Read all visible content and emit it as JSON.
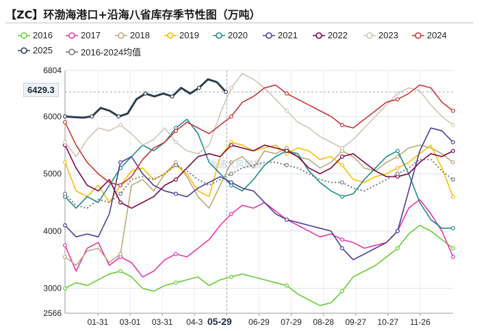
{
  "title": "【ZC】环渤海港口+沿海八省库存季节性图（万吨）",
  "watermark": "海通大风期货",
  "readout": "6429.3",
  "crosshair_date": "05-29",
  "chart_data": {
    "type": "line",
    "y_axis": {
      "min": 2566,
      "max": 6804,
      "ticks": [
        2566,
        3000,
        4000,
        5000,
        6000,
        6804
      ]
    },
    "x_axis": {
      "tick_labels": [
        "01-31",
        "03-01",
        "03-31",
        "04-3",
        "05-29",
        "06-29",
        "07-29",
        "08-28",
        "09-27",
        "10-27",
        "11-26"
      ]
    },
    "grid": true,
    "legend_position": "top",
    "series": [
      {
        "name": "2016",
        "color": "#66cc33",
        "values": [
          3000,
          3100,
          3050,
          3150,
          3250,
          3300,
          3200,
          3000,
          2950,
          3050,
          3100,
          3150,
          3200,
          3050,
          3150,
          3200,
          3250,
          3200,
          3150,
          3100,
          3050,
          2900,
          2800,
          2700,
          2750,
          2950,
          3200,
          3300,
          3400,
          3550,
          3700,
          3950,
          4100,
          4000,
          3850,
          3700
        ]
      },
      {
        "name": "2017",
        "color": "#ee33aa",
        "values": [
          3750,
          3300,
          3700,
          3800,
          3400,
          3550,
          3450,
          3200,
          3300,
          3500,
          3600,
          3550,
          3700,
          3850,
          4100,
          4300,
          4450,
          4400,
          4500,
          4350,
          4200,
          4100,
          4000,
          3900,
          3950,
          3850,
          3800,
          3700,
          3750,
          3800,
          4000,
          4400,
          4550,
          4300,
          4000,
          3550
        ]
      },
      {
        "name": "2018",
        "color": "#bbaa77",
        "values": [
          3550,
          3400,
          3650,
          3700,
          3450,
          3600,
          4800,
          4900,
          4700,
          5000,
          5200,
          4950,
          4600,
          4400,
          4800,
          5200,
          5300,
          5100,
          5400,
          5350,
          5450,
          5300,
          5250,
          5100,
          5200,
          5400,
          5300,
          5100,
          5050,
          5200,
          5300,
          5450,
          5500,
          5450,
          5350,
          5200
        ]
      },
      {
        "name": "2019",
        "color": "#ffbb00",
        "values": [
          5200,
          4700,
          4600,
          4800,
          4500,
          4800,
          5050,
          5100,
          4900,
          5000,
          5150,
          5000,
          4700,
          4600,
          5300,
          5550,
          5500,
          5400,
          5450,
          5500,
          5350,
          5450,
          5400,
          5250,
          5300,
          5150,
          4900,
          4850,
          4950,
          5000,
          5100,
          5200,
          5350,
          5500,
          5100,
          4600
        ]
      },
      {
        "name": "2020",
        "color": "#1a8a8a",
        "values": [
          4600,
          4400,
          4600,
          4500,
          4800,
          5100,
          5300,
          5500,
          5400,
          5550,
          5800,
          5950,
          5700,
          5200,
          5000,
          4800,
          4700,
          4900,
          5150,
          5300,
          5400,
          5350,
          5050,
          4850,
          4700,
          4600,
          4650,
          4900,
          5100,
          5300,
          5400,
          5000,
          4500,
          4200,
          4050,
          4050
        ]
      },
      {
        "name": "2021",
        "color": "#4a3a9a",
        "values": [
          4100,
          3900,
          3950,
          3900,
          4300,
          5200,
          5300,
          5000,
          4800,
          4700,
          4650,
          4600,
          4750,
          4850,
          4950,
          4850,
          4750,
          4700,
          4500,
          4300,
          4200,
          4150,
          4100,
          4050,
          4000,
          3700,
          3500,
          3600,
          3700,
          3800,
          4000,
          4700,
          5400,
          5800,
          5750,
          5550
        ]
      },
      {
        "name": "2022",
        "color": "#800040",
        "values": [
          5500,
          5100,
          4800,
          4700,
          4900,
          4500,
          4400,
          4500,
          4600,
          4800,
          4900,
          5100,
          5300,
          5350,
          5300,
          5500,
          5450,
          5400,
          5500,
          5450,
          5400,
          5300,
          5100,
          5000,
          5100,
          5300,
          5350,
          5200,
          5050,
          4950,
          4950,
          5000,
          5200,
          5350,
          5300,
          5400
        ]
      },
      {
        "name": "2023",
        "color": "#d0c4b4",
        "values": [
          5550,
          5300,
          5600,
          5800,
          5750,
          5850,
          5700,
          5500,
          5600,
          5800,
          5550,
          5400,
          5350,
          5500,
          6050,
          6500,
          6750,
          6650,
          6500,
          6300,
          6100,
          5900,
          5800,
          5650,
          5550,
          5450,
          5600,
          5800,
          6000,
          6200,
          6400,
          6500,
          6450,
          6200,
          6000,
          5850
        ]
      },
      {
        "name": "2024",
        "color": "#cc3333",
        "values": [
          5900,
          5500,
          5200,
          5000,
          4850,
          4800,
          4950,
          5250,
          5450,
          5550,
          5750,
          5900,
          5800,
          5700,
          5850,
          6000,
          6250,
          6350,
          6500,
          6550,
          6400,
          6300,
          6200,
          6100,
          6000,
          5850,
          5800,
          5950,
          6100,
          6250,
          6300,
          6400,
          6550,
          6500,
          6250,
          6100
        ]
      },
      {
        "name": "2025",
        "color": "#2c3e50",
        "values": [
          6000,
          5990,
          5980,
          6000,
          6150,
          6100,
          6000,
          6050,
          6300,
          6400,
          6350,
          6400,
          6350,
          6500,
          6400,
          6500,
          6650,
          6600,
          6429.3
        ]
      },
      {
        "name": "2016-2024均值",
        "color": "#777777",
        "dashed": true,
        "values": [
          4650,
          4450,
          4400,
          4550,
          4500,
          4650,
          4900,
          4950,
          4900,
          5000,
          5150,
          5050,
          4900,
          4800,
          4900,
          5000,
          5100,
          5150,
          5200,
          5200,
          5150,
          5100,
          5000,
          4900,
          4850,
          4850,
          4750,
          4700,
          4800,
          4900,
          5000,
          5100,
          5250,
          5250,
          5050,
          4900
        ]
      }
    ]
  }
}
